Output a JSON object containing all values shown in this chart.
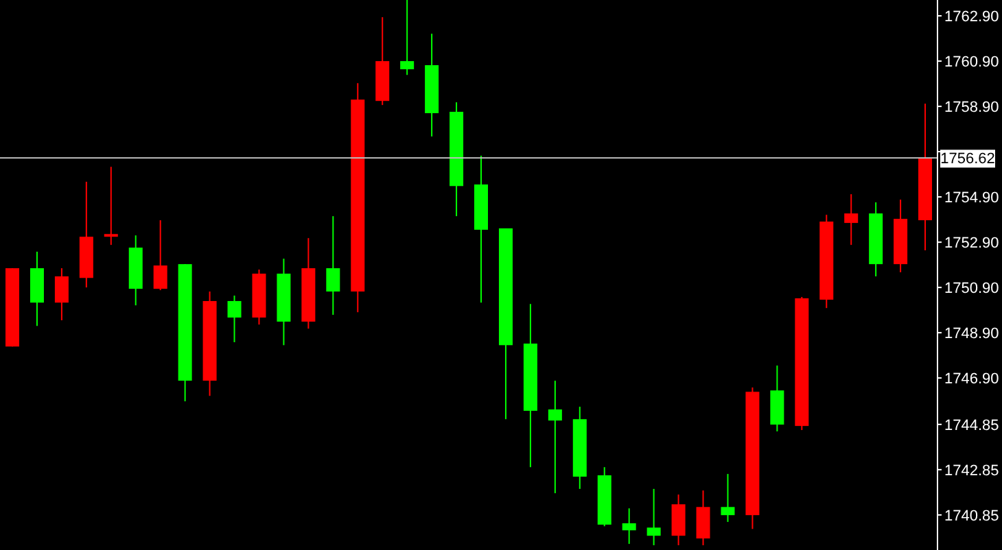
{
  "chart_data": {
    "type": "candlestick",
    "categories": [
      null,
      null,
      null,
      null,
      null,
      null,
      null,
      null,
      null,
      null,
      null,
      null,
      null,
      null,
      null,
      null,
      null,
      null,
      null,
      null,
      null,
      null,
      null,
      null,
      null,
      null,
      null,
      null,
      null,
      null,
      null,
      null,
      null,
      null,
      null,
      null,
      null,
      null
    ],
    "ohlc": [
      [
        1748.29,
        1751.75,
        1748.29,
        1751.75
      ],
      [
        1751.75,
        1752.48,
        1749.2,
        1750.23
      ],
      [
        1750.23,
        1751.75,
        1749.45,
        1751.39
      ],
      [
        1751.32,
        1755.57,
        1750.9,
        1753.14
      ],
      [
        1753.14,
        1756.23,
        1752.78,
        1753.26
      ],
      [
        1752.66,
        1753.2,
        1750.11,
        1750.84
      ],
      [
        1750.84,
        1753.87,
        1750.78,
        1751.87
      ],
      [
        1751.93,
        1751.93,
        1745.87,
        1746.78
      ],
      [
        1746.78,
        1750.72,
        1746.11,
        1750.3
      ],
      [
        1750.3,
        1750.54,
        1748.48,
        1749.57
      ],
      [
        1749.57,
        1751.69,
        1749.26,
        1751.51
      ],
      [
        1751.51,
        1752.17,
        1748.35,
        1749.39
      ],
      [
        1749.39,
        1753.08,
        1749.08,
        1751.75
      ],
      [
        1751.75,
        1754.05,
        1749.69,
        1750.72
      ],
      [
        1750.72,
        1759.93,
        1749.81,
        1759.2
      ],
      [
        1759.14,
        1762.84,
        1758.96,
        1760.9
      ],
      [
        1760.9,
        1763.6,
        1760.29,
        1760.54
      ],
      [
        1760.72,
        1762.11,
        1757.57,
        1758.6
      ],
      [
        1758.66,
        1759.08,
        1754.05,
        1755.38
      ],
      [
        1755.45,
        1756.72,
        1750.23,
        1753.45
      ],
      [
        1753.51,
        1753.51,
        1745.08,
        1748.35
      ],
      [
        1748.42,
        1750.17,
        1742.96,
        1745.45
      ],
      [
        1745.51,
        1746.78,
        1741.81,
        1745.02
      ],
      [
        1745.08,
        1745.63,
        1742.0,
        1742.54
      ],
      [
        1742.6,
        1742.96,
        1740.35,
        1740.42
      ],
      [
        1740.48,
        1741.14,
        1739.57,
        1740.17
      ],
      [
        1740.29,
        1742.0,
        1739.51,
        1739.93
      ],
      [
        1739.93,
        1741.75,
        1739.51,
        1741.32
      ],
      [
        1739.81,
        1741.93,
        1739.51,
        1741.2
      ],
      [
        1741.2,
        1742.66,
        1740.54,
        1740.84
      ],
      [
        1740.84,
        1746.48,
        1740.23,
        1746.29
      ],
      [
        1746.35,
        1747.45,
        1744.54,
        1744.84
      ],
      [
        1744.78,
        1750.48,
        1744.6,
        1750.42
      ],
      [
        1750.36,
        1754.11,
        1749.99,
        1753.81
      ],
      [
        1753.75,
        1755.02,
        1752.78,
        1754.17
      ],
      [
        1754.17,
        1754.66,
        1751.39,
        1751.93
      ],
      [
        1751.93,
        1754.78,
        1751.57,
        1753.93
      ],
      [
        1753.87,
        1759.02,
        1752.54,
        1756.62
      ]
    ],
    "colors": [
      "#ff0000",
      "#00ff00",
      "#ff0000",
      "#ff0000",
      "#ff0000",
      "#00ff00",
      "#ff0000",
      "#00ff00",
      "#ff0000",
      "#00ff00",
      "#ff0000",
      "#00ff00",
      "#ff0000",
      "#00ff00",
      "#ff0000",
      "#ff0000",
      "#00ff00",
      "#00ff00",
      "#00ff00",
      "#00ff00",
      "#00ff00",
      "#00ff00",
      "#00ff00",
      "#00ff00",
      "#00ff00",
      "#00ff00",
      "#00ff00",
      "#ff0000",
      "#ff0000",
      "#00ff00",
      "#ff0000",
      "#00ff00",
      "#ff0000",
      "#ff0000",
      "#ff0000",
      "#00ff00",
      "#ff0000",
      "#ff0000"
    ],
    "ylim": [
      1739.3,
      1763.6
    ],
    "yticks": [
      1740.85,
      1742.85,
      1744.85,
      {
        "value": 1746.9,
        "label": "1746.90"
      },
      {
        "value": 1748.9,
        "label": "1748.90"
      },
      {
        "value": 1750.9,
        "label": "1750.90"
      },
      {
        "value": 1752.9,
        "label": "1752.90"
      },
      {
        "value": 1754.9,
        "label": "1754.90"
      },
      {
        "value": 1756.9,
        "label": null
      },
      {
        "value": 1758.9,
        "label": "1758.90"
      },
      {
        "value": 1760.9,
        "label": "1760.90"
      },
      {
        "value": 1762.9,
        "label": "1762.90"
      }
    ],
    "tick_labels": "y",
    "ref_lines": [
      {
        "axis": "y",
        "value": 1756.62,
        "label": "1756.62",
        "color": "#c0c0c0"
      }
    ]
  }
}
